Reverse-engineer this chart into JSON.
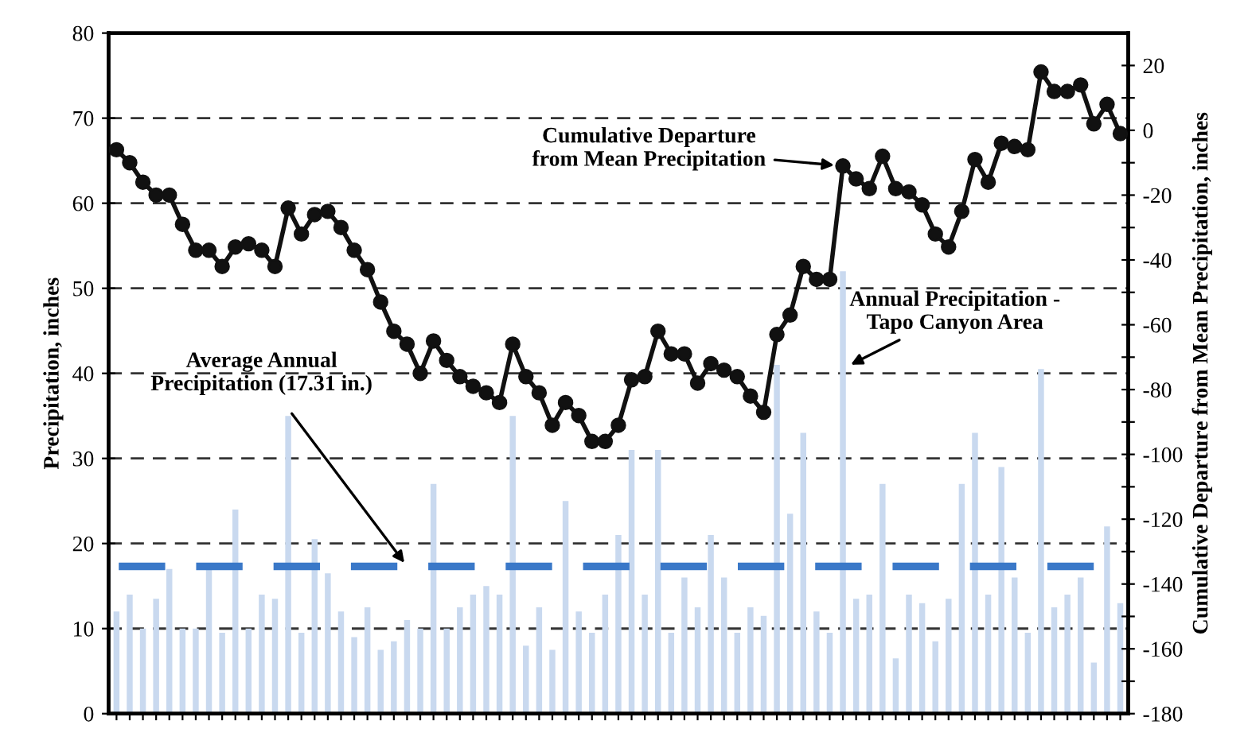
{
  "chart_data": {
    "type": "bar",
    "ylabel": "Precipitation, inches",
    "y2label": "Cumulative Departure from Mean Precipitation, inches",
    "categories": [
      null,
      null,
      null,
      null,
      null,
      null,
      null,
      null,
      null,
      null,
      null,
      null,
      null,
      null,
      null,
      null,
      null,
      null,
      null,
      null,
      null,
      null,
      null,
      null,
      null,
      null,
      null,
      null,
      null,
      null,
      null,
      null,
      null,
      null,
      null,
      null,
      null,
      null,
      null,
      null,
      null,
      null,
      null,
      null,
      null,
      null,
      null,
      null,
      null,
      null,
      null,
      null,
      null,
      null,
      null,
      null,
      null,
      null,
      null,
      null,
      null,
      null,
      null,
      null,
      null,
      null,
      null,
      null,
      null,
      null,
      null,
      null,
      null,
      null,
      null,
      null,
      null
    ],
    "series": [
      {
        "name": "Annual Precipitation -\nTapo Canyon Area",
        "color": "#c9d9ef",
        "values": [
          12,
          14,
          10,
          13.5,
          17,
          10,
          10,
          17,
          9.5,
          24,
          10,
          14,
          13.5,
          35,
          9.5,
          20.5,
          16.5,
          12,
          9,
          12.5,
          7.5,
          8.5,
          11,
          10,
          27,
          10,
          12.5,
          14,
          15,
          14,
          35,
          8,
          12.5,
          7.5,
          25,
          12,
          9.5,
          14,
          21,
          31,
          14,
          31,
          9.5,
          16,
          12.5,
          21,
          16,
          9.5,
          12.5,
          11.5,
          41,
          23.5,
          33,
          12,
          9.5,
          52,
          13.5,
          14,
          27,
          6.5,
          14,
          13,
          8.5,
          13.5,
          27,
          33,
          14,
          29,
          16,
          9.5,
          40.5,
          12.5,
          14,
          16,
          6,
          22,
          13
        ]
      },
      {
        "name": "Cumulative Departure\nfrom Mean Precipitation",
        "type": "line",
        "axis": "y2",
        "color": "#111111",
        "marker": "circle",
        "line_style": "solid",
        "values": [
          -6,
          -10,
          -16,
          -20,
          -20,
          -29,
          -37,
          -37,
          -42,
          -36,
          -35,
          -37,
          -42,
          -24,
          -32,
          -26,
          -25,
          -30,
          -37,
          -43,
          -53,
          -62,
          -66,
          -75,
          -65,
          -71,
          -76,
          -79,
          -81,
          -84,
          -66,
          -76,
          -81,
          -91,
          -84,
          -88,
          -96,
          -96,
          -91,
          -77,
          -76,
          -62,
          -69,
          -69,
          -78,
          -72,
          -74,
          -76,
          -82,
          -87,
          -63,
          -57,
          -42,
          -46,
          -46,
          -11,
          -15,
          -18,
          -8,
          -18,
          -19,
          -23,
          -32,
          -36,
          -25,
          -9,
          -16,
          -4,
          -5,
          -6,
          18,
          12,
          12,
          14,
          2,
          8,
          -1
        ]
      }
    ],
    "ylim": [
      0,
      80
    ],
    "yticks": [
      0,
      10,
      20,
      30,
      40,
      50,
      60,
      70,
      80
    ],
    "y2lim": [
      -180,
      30
    ],
    "y2ticks": [
      -180,
      {
        "value": -170,
        "label": null
      },
      -160,
      {
        "value": -150,
        "label": null
      },
      -140,
      {
        "value": -130,
        "label": null
      },
      -120,
      {
        "value": -110,
        "label": null
      },
      -100,
      {
        "value": -90,
        "label": null
      },
      -80,
      {
        "value": -70,
        "label": null
      },
      -60,
      {
        "value": -50,
        "label": null
      },
      -40,
      {
        "value": -30,
        "label": null
      },
      -20,
      {
        "value": -10,
        "label": null
      },
      0,
      {
        "value": 10,
        "label": null
      },
      20
    ],
    "ref_lines": [
      {
        "axis": "y",
        "value": 17.31,
        "label": "Average Annual\nPrecipitation (17.31 in.)",
        "color": "#3a78c8",
        "line_style": "dashed"
      }
    ],
    "grid": "y",
    "legend": false
  }
}
